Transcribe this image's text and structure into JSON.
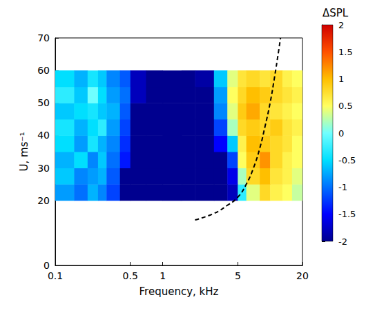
{
  "chart_data": {
    "type": "heatmap",
    "x_label": "Frequency, kHz",
    "y_label": "U, ms⁻¹",
    "log": "x",
    "grid": false,
    "xlim": [
      0.1,
      20
    ],
    "xticks": [
      0.1,
      0.5,
      1,
      5,
      20
    ],
    "ylim": [
      0,
      70
    ],
    "yticks": [
      0,
      20,
      30,
      40,
      50,
      60,
      70
    ],
    "heatmap": {
      "x_edges": [
        0.1,
        0.15,
        0.2,
        0.25,
        0.3,
        0.4,
        0.5,
        0.7,
        1,
        1.5,
        2,
        3,
        4,
        5,
        6,
        8,
        10,
        13,
        16,
        20
      ],
      "y_edges": [
        20,
        25,
        30,
        35,
        40,
        45,
        50,
        55,
        60
      ],
      "values": [
        [
          -0.8,
          -1.0,
          -0.7,
          -0.9,
          -1.2,
          -2,
          -2,
          -2,
          -2,
          -2,
          -2,
          -2,
          -1.8,
          -0.3,
          0.4,
          0.8,
          0.6,
          0.5,
          0.3
        ],
        [
          -0.6,
          -0.9,
          -0.8,
          -0.7,
          -1.1,
          -2,
          -2,
          -2,
          -2,
          -2,
          -2,
          -2,
          -1.6,
          0.2,
          0.8,
          1.0,
          0.7,
          0.6,
          0.4
        ],
        [
          -0.7,
          -0.5,
          -0.9,
          -0.6,
          -1.0,
          -1.4,
          -2,
          -2,
          -2,
          -2,
          -2,
          -2,
          -1.2,
          0.5,
          0.9,
          1.2,
          0.8,
          0.6,
          0.5
        ],
        [
          -0.5,
          -0.8,
          -0.4,
          -0.7,
          -0.9,
          -1.3,
          -2,
          -2,
          -2,
          -2,
          -2,
          -1.5,
          -0.6,
          0.6,
          1.0,
          0.9,
          0.8,
          0.7,
          0.5
        ],
        [
          -0.4,
          -0.7,
          -0.5,
          -0.3,
          -0.8,
          -1.2,
          -2,
          -2,
          -2,
          -2,
          -2,
          -1.2,
          0.2,
          0.8,
          0.9,
          0.8,
          0.9,
          0.7,
          0.6
        ],
        [
          -0.6,
          -0.5,
          -0.4,
          -0.6,
          -0.7,
          -1.1,
          -2,
          -2,
          -2,
          -2,
          -2,
          -0.9,
          0.4,
          0.9,
          1.1,
          0.8,
          0.7,
          0.6,
          0.5
        ],
        [
          -0.3,
          -0.6,
          0.0,
          -0.5,
          -0.8,
          -1.0,
          -1.8,
          -2,
          -2,
          -2,
          -2,
          -0.8,
          0.5,
          0.8,
          1.0,
          0.9,
          0.8,
          0.7,
          0.6
        ],
        [
          -0.5,
          -0.7,
          -0.4,
          -0.6,
          -0.9,
          -1.1,
          -1.8,
          -2,
          -2,
          -2,
          -1.9,
          -0.6,
          0.4,
          0.7,
          0.8,
          0.7,
          0.8,
          0.6,
          0.5
        ]
      ]
    },
    "colorbar": {
      "label": "ΔSPL",
      "lim": [
        -2,
        2
      ],
      "ticks": [
        -2,
        -1.5,
        -1,
        -0.5,
        0,
        0.5,
        1,
        1.5,
        2
      ]
    },
    "curve": {
      "x": [
        2,
        3,
        4,
        5,
        6,
        7,
        8,
        9,
        10,
        11,
        12,
        12.5
      ],
      "y": [
        14,
        16,
        18.5,
        21,
        25,
        30,
        36,
        43,
        50,
        58,
        66,
        70
      ],
      "color": "#000000",
      "line_style": "dashed"
    }
  }
}
